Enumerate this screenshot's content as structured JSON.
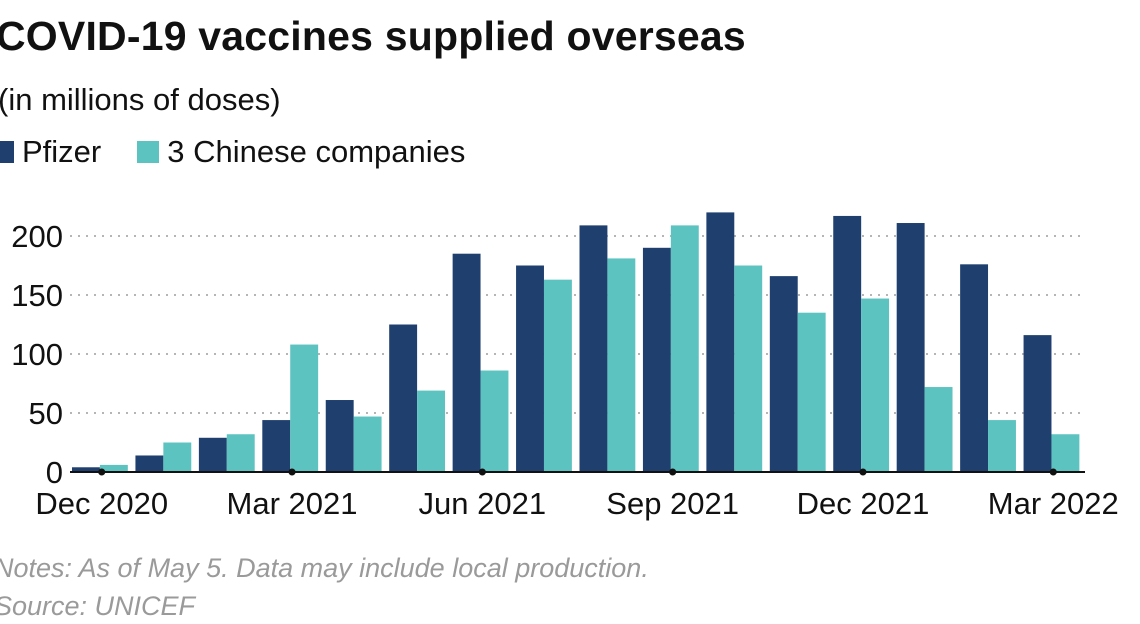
{
  "header": {
    "title": "COVID-19 vaccines supplied overseas",
    "subtitle": "(in millions of doses)"
  },
  "notes": {
    "note": "Notes: As of May 5. Data may include local production.",
    "source": "Source: UNICEF"
  },
  "chart_data": {
    "type": "bar",
    "title": "COVID-19 vaccines supplied overseas",
    "subtitle": "(in millions of doses)",
    "xlabel": "",
    "ylabel": "",
    "categories": [
      "Dec 2020",
      "Jan 2021",
      "Feb 2021",
      "Mar 2021",
      "Apr 2021",
      "May 2021",
      "Jun 2021",
      "Jul 2021",
      "Aug 2021",
      "Sep 2021",
      "Oct 2021",
      "Nov 2021",
      "Dec 2021",
      "Jan 2022",
      "Feb 2022",
      "Mar 2022"
    ],
    "x_tick_labels": [
      "Dec 2020",
      "Mar 2021",
      "Jun 2021",
      "Sep 2021",
      "Dec 2021",
      "Mar 2022"
    ],
    "series": [
      {
        "name": "Pfizer",
        "color": "#1f3f6e",
        "values": [
          4,
          14,
          29,
          44,
          61,
          125,
          185,
          175,
          209,
          190,
          220,
          166,
          217,
          211,
          176,
          116
        ]
      },
      {
        "name": "3 Chinese companies",
        "color": "#5cc3c0",
        "values": [
          6,
          25,
          32,
          108,
          47,
          69,
          86,
          163,
          181,
          209,
          175,
          135,
          147,
          72,
          44,
          32
        ]
      }
    ],
    "yticks": [
      0,
      50,
      100,
      150,
      200
    ],
    "ylim": [
      0,
      230
    ],
    "grid": true,
    "legend": "top-left"
  }
}
